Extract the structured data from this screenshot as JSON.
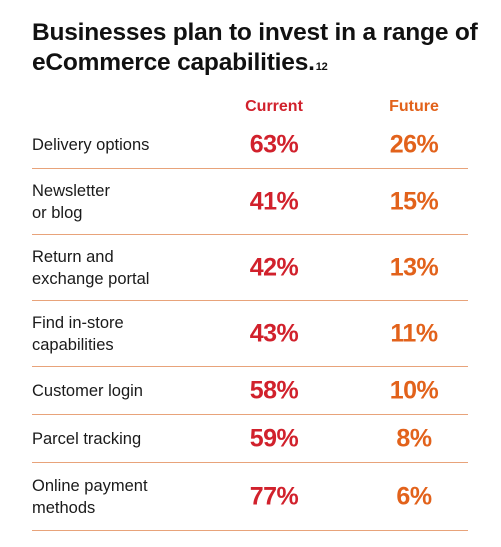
{
  "title": "Businesses plan to invest in a range of eCommerce capabilities.",
  "footnote": "12",
  "colors": {
    "current": "#d1212c",
    "future": "#e2621b",
    "divider": "#e8a37a"
  },
  "columns": {
    "current": "Current",
    "future": "Future"
  },
  "chart_data": {
    "type": "table",
    "title": "Businesses plan to invest in a range of eCommerce capabilities.",
    "categories": [
      "Delivery options",
      "Newsletter\nor blog",
      "Return and\nexchange portal",
      "Find in-store\ncapabilities",
      "Customer login",
      "Parcel tracking",
      "Online payment\nmethods"
    ],
    "series": [
      {
        "name": "Current",
        "values": [
          63,
          41,
          42,
          43,
          58,
          59,
          77
        ],
        "labels": [
          "63%",
          "41%",
          "42%",
          "43%",
          "58%",
          "59%",
          "77%"
        ]
      },
      {
        "name": "Future",
        "values": [
          26,
          15,
          13,
          11,
          10,
          8,
          6
        ],
        "labels": [
          "26%",
          "15%",
          "13%",
          "11%",
          "10%",
          "8%",
          "6%"
        ]
      }
    ],
    "unit": "%"
  }
}
